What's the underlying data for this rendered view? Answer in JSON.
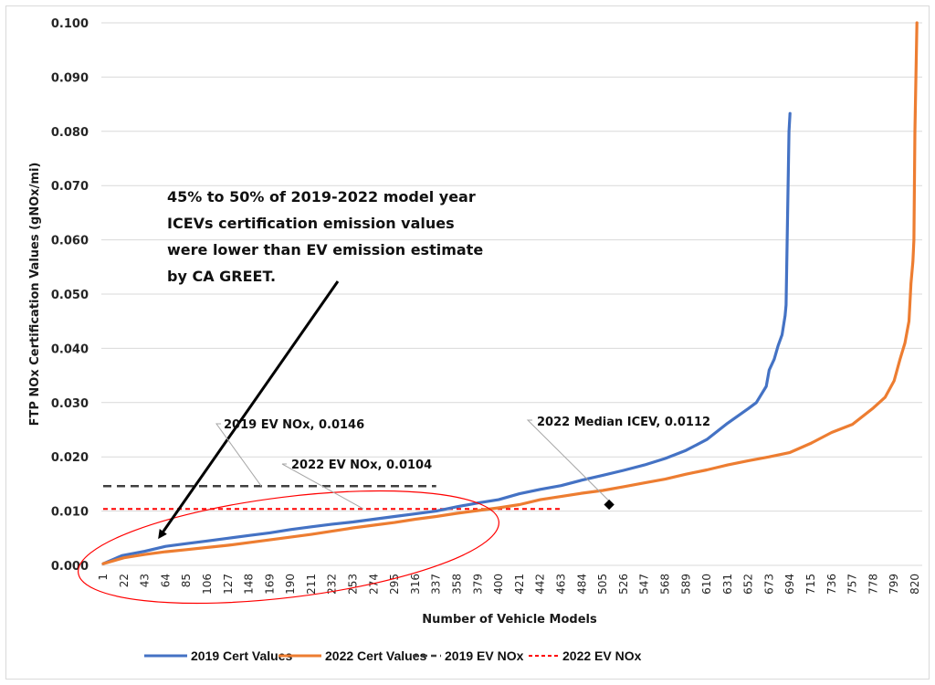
{
  "chart_data": {
    "type": "line",
    "title": "",
    "xlabel": "Number of Vehicle Models",
    "ylabel": "FTP NOx Certification Values (gNOx/mi)",
    "ylim": [
      0,
      0.1
    ],
    "xlim": [
      1,
      825
    ],
    "grid": true,
    "legend_position": "bottom",
    "y_ticks": [
      "0.000",
      "0.010",
      "0.020",
      "0.030",
      "0.040",
      "0.050",
      "0.060",
      "0.070",
      "0.080",
      "0.090",
      "0.100"
    ],
    "x_ticks": [
      "1",
      "22",
      "43",
      "64",
      "85",
      "106",
      "127",
      "148",
      "169",
      "190",
      "211",
      "232",
      "253",
      "274",
      "295",
      "316",
      "337",
      "358",
      "379",
      "400",
      "421",
      "442",
      "463",
      "484",
      "505",
      "526",
      "547",
      "568",
      "589",
      "610",
      "631",
      "652",
      "673",
      "694",
      "715",
      "736",
      "757",
      "778",
      "799",
      "820"
    ],
    "series": [
      {
        "name": "2019 Cert Values",
        "color": "#4472c4",
        "style": "solid",
        "x": [
          1,
          20,
          43,
          64,
          85,
          106,
          127,
          148,
          169,
          190,
          211,
          232,
          253,
          274,
          295,
          316,
          337,
          358,
          379,
          400,
          421,
          442,
          463,
          484,
          505,
          526,
          547,
          568,
          589,
          610,
          631,
          652,
          660,
          670,
          673,
          678,
          682,
          686,
          689,
          690,
          692,
          693,
          694
        ],
        "y": [
          0.0003,
          0.0018,
          0.0026,
          0.0035,
          0.004,
          0.0045,
          0.005,
          0.0055,
          0.006,
          0.0066,
          0.0071,
          0.0076,
          0.008,
          0.0085,
          0.009,
          0.0095,
          0.01,
          0.0108,
          0.0115,
          0.0121,
          0.0132,
          0.014,
          0.0147,
          0.0157,
          0.0166,
          0.0175,
          0.0185,
          0.0197,
          0.0212,
          0.0232,
          0.0262,
          0.0289,
          0.03,
          0.033,
          0.036,
          0.038,
          0.0405,
          0.0425,
          0.046,
          0.048,
          0.07,
          0.08,
          0.0833
        ]
      },
      {
        "name": "2022 Cert Values",
        "color": "#ed7d31",
        "style": "solid",
        "x": [
          1,
          22,
          43,
          64,
          85,
          106,
          127,
          148,
          169,
          190,
          211,
          232,
          253,
          274,
          295,
          316,
          337,
          358,
          379,
          400,
          421,
          442,
          463,
          484,
          505,
          526,
          547,
          568,
          589,
          610,
          631,
          652,
          673,
          694,
          715,
          736,
          757,
          778,
          790,
          799,
          805,
          810,
          814,
          816,
          818,
          819,
          820,
          822
        ],
        "y": [
          0.0003,
          0.0014,
          0.002,
          0.0025,
          0.0029,
          0.0033,
          0.0037,
          0.0042,
          0.0047,
          0.0052,
          0.0057,
          0.0063,
          0.0069,
          0.0074,
          0.0079,
          0.0085,
          0.009,
          0.0096,
          0.0101,
          0.0106,
          0.0112,
          0.0121,
          0.0127,
          0.0133,
          0.0138,
          0.0145,
          0.0152,
          0.0159,
          0.0168,
          0.0176,
          0.0185,
          0.0193,
          0.02,
          0.0208,
          0.0225,
          0.0245,
          0.026,
          0.029,
          0.031,
          0.034,
          0.038,
          0.041,
          0.045,
          0.052,
          0.056,
          0.06,
          0.08,
          0.1
        ]
      },
      {
        "name": "2019 EV NOx",
        "color": "#404040",
        "style": "dashed",
        "x": [
          1,
          337
        ],
        "y": [
          0.0146,
          0.0146
        ]
      },
      {
        "name": "2022 EV NOx",
        "color": "#ff0000",
        "style": "dashed",
        "x": [
          1,
          463
        ],
        "y": [
          0.0104,
          0.0104
        ]
      }
    ],
    "annotations": [
      {
        "id": "main-note",
        "lines": [
          "45% to 50% of 2019-2022 model year",
          "ICEVs certification emission values",
          "were lower than EV emission estimate",
          "by CA GREET."
        ]
      },
      {
        "id": "ev2019",
        "text": "2019 EV NOx, 0.0146",
        "x": 50,
        "y": 0.0146
      },
      {
        "id": "ev2022",
        "text": "2022 EV NOx, 0.0104",
        "x": 153,
        "y": 0.0104
      },
      {
        "id": "median2022",
        "text": "2022 Median ICEV, 0.0112",
        "x": 412,
        "y": 0.0112
      }
    ]
  }
}
